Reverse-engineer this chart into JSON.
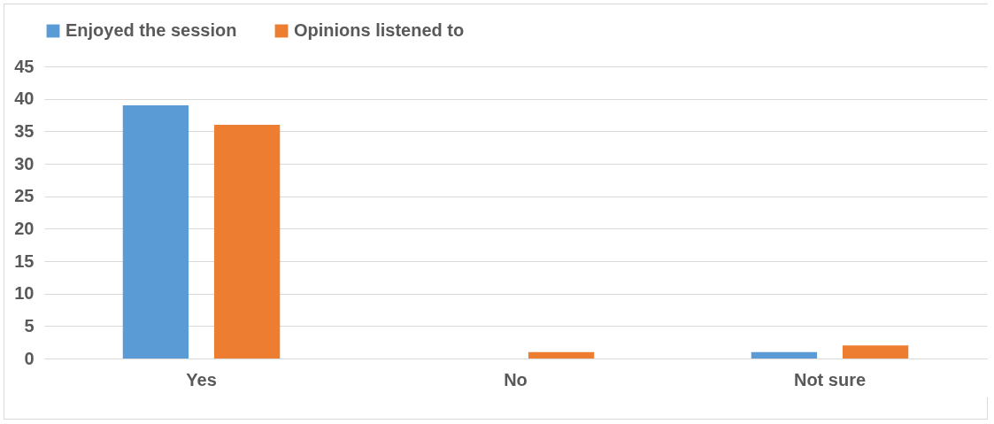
{
  "chart_data": {
    "type": "bar",
    "categories": [
      "Yes",
      "No",
      "Not sure"
    ],
    "series": [
      {
        "name": "Enjoyed the session",
        "color": "#5b9bd5",
        "values": [
          39,
          0,
          1
        ]
      },
      {
        "name": "Opinions listened to",
        "color": "#ed7d31",
        "values": [
          36,
          1,
          2
        ]
      }
    ],
    "ylim": [
      0,
      45
    ],
    "yticks": [
      0,
      5,
      10,
      15,
      20,
      25,
      30,
      35,
      40,
      45
    ],
    "grid": "y",
    "legend": "top"
  }
}
